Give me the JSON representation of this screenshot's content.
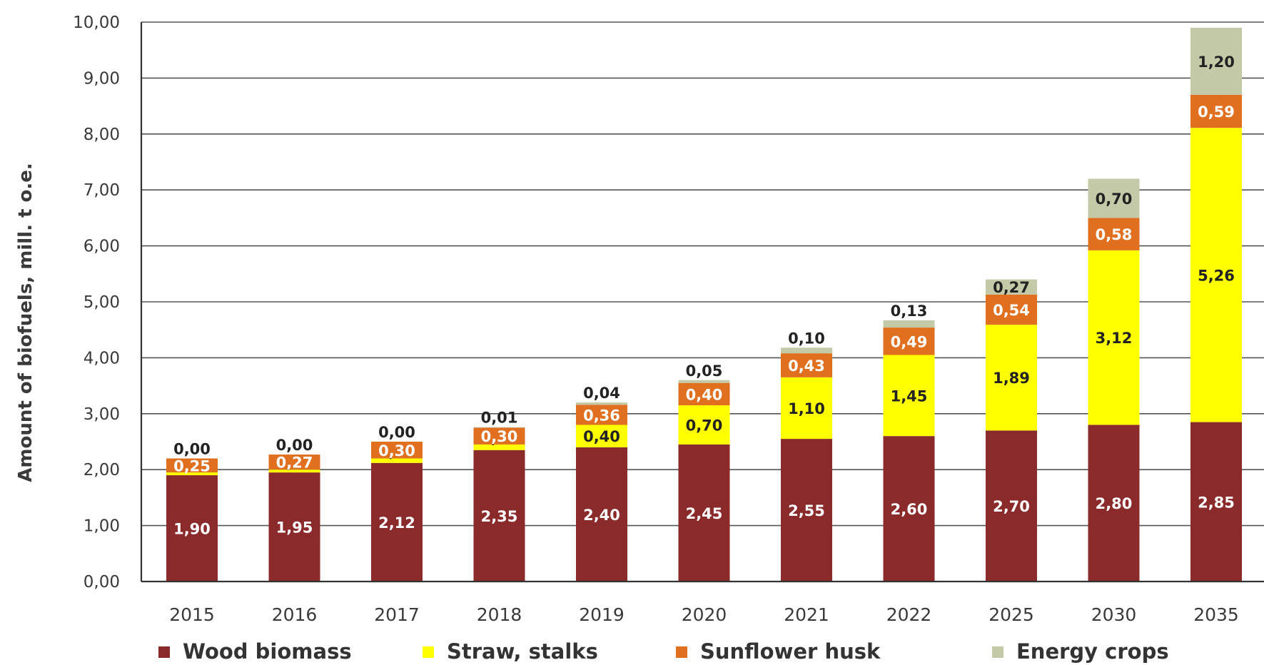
{
  "chart_data": {
    "type": "bar",
    "stacked": true,
    "categories": [
      "2015",
      "2016",
      "2017",
      "2018",
      "2019",
      "2020",
      "2021",
      "2022",
      "2025",
      "2030",
      "2035"
    ],
    "ylabel": "Amount of biofuels, mill. t o.e.",
    "ylim": [
      0,
      10
    ],
    "yticks": [
      "0,00",
      "1,00",
      "2,00",
      "3,00",
      "4,00",
      "5,00",
      "6,00",
      "7,00",
      "8,00",
      "9,00",
      "10,00"
    ],
    "grid": true,
    "legend_position": "bottom",
    "series": [
      {
        "name": "Wood biomass",
        "color": "#8b2a2a",
        "label_color": "#ffffff",
        "values": [
          1.9,
          1.95,
          2.12,
          2.35,
          2.4,
          2.45,
          2.55,
          2.6,
          2.7,
          2.8,
          2.85
        ],
        "labels": [
          "1,90",
          "1,95",
          "2,12",
          "2,35",
          "2,40",
          "2,45",
          "2,55",
          "2,60",
          "2,70",
          "2,80",
          "2,85"
        ]
      },
      {
        "name": "Straw, stalks",
        "color": "#ffff00",
        "label_color": "#222222",
        "values": [
          0.05,
          0.05,
          0.08,
          0.1,
          0.4,
          0.7,
          1.1,
          1.45,
          1.89,
          3.12,
          5.26
        ],
        "labels": [
          "0,05",
          "0,05",
          "0,08",
          "0,10",
          "0,40",
          "0,70",
          "1,10",
          "1,45",
          "1,89",
          "3,12",
          "5,26"
        ]
      },
      {
        "name": "Sunflower husk",
        "color": "#e07020",
        "label_color": "#ffffff",
        "values": [
          0.25,
          0.27,
          0.3,
          0.3,
          0.36,
          0.4,
          0.43,
          0.49,
          0.54,
          0.58,
          0.59
        ],
        "labels": [
          "0,25",
          "0,27",
          "0,30",
          "0,30",
          "0,36",
          "0,40",
          "0,43",
          "0,49",
          "0,54",
          "0,58",
          "0,59"
        ]
      },
      {
        "name": "Energy crops",
        "color": "#c4c9a8",
        "label_color": "#222222",
        "values": [
          0.0,
          0.0,
          0.0,
          0.01,
          0.04,
          0.05,
          0.1,
          0.13,
          0.27,
          0.7,
          1.2
        ],
        "labels": [
          "0,00",
          "0,00",
          "0,00",
          "0,01",
          "0,04",
          "0,05",
          "0,10",
          "0,13",
          "0,27",
          "0,70",
          "1,20"
        ]
      }
    ]
  }
}
